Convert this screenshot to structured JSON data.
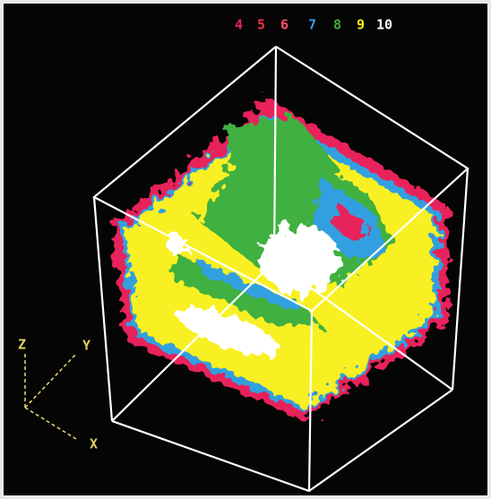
{
  "legend": [
    {
      "label": "4",
      "color": "#e8205a"
    },
    {
      "label": "5",
      "color": "#f03040"
    },
    {
      "label": "6",
      "color": "#ff5070"
    },
    {
      "label": "7",
      "color": "#30a0e0"
    },
    {
      "label": "8",
      "color": "#40b040"
    },
    {
      "label": "9",
      "color": "#f8f020"
    },
    {
      "label": "10",
      "color": "#ffffff"
    }
  ],
  "axes": {
    "z": "Z",
    "y": "Y",
    "x": "X"
  }
}
